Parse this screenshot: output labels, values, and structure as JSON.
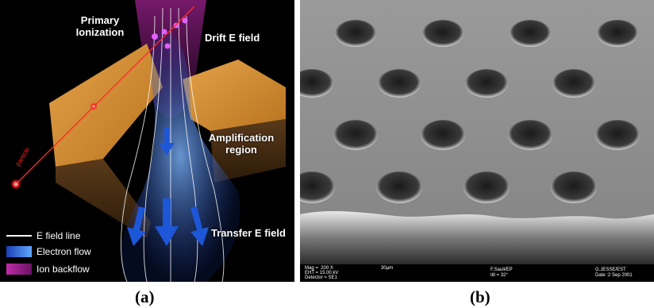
{
  "panel_a": {
    "labels": {
      "primary_ionization": "Primary Ionization",
      "drift_field": "Drift E field",
      "amplification": "Amplification region",
      "transfer_field": "Transfer E field",
      "particle": "particle"
    },
    "legend": {
      "field_line": "E field line",
      "electron_flow": "Electron flow",
      "ion_backflow": "Ion backflow"
    },
    "colors": {
      "foil": "#d89436",
      "electron": "#3a78e8",
      "ion": "#c02aa8",
      "particle": "#ff2a2a"
    }
  },
  "panel_b": {
    "sem": {
      "mag": "Mag =  200 X",
      "eht": "EHT = 15.00 kV",
      "detector": "Detector = SE1",
      "scale": "30µm",
      "operator": "F.Sauli/EP",
      "tilt": "tilt = 32°",
      "author": "G.JESSE/EST",
      "date": "Date :2 Sep 2001"
    }
  },
  "captions": {
    "a": "(a)",
    "b": "(b)"
  }
}
